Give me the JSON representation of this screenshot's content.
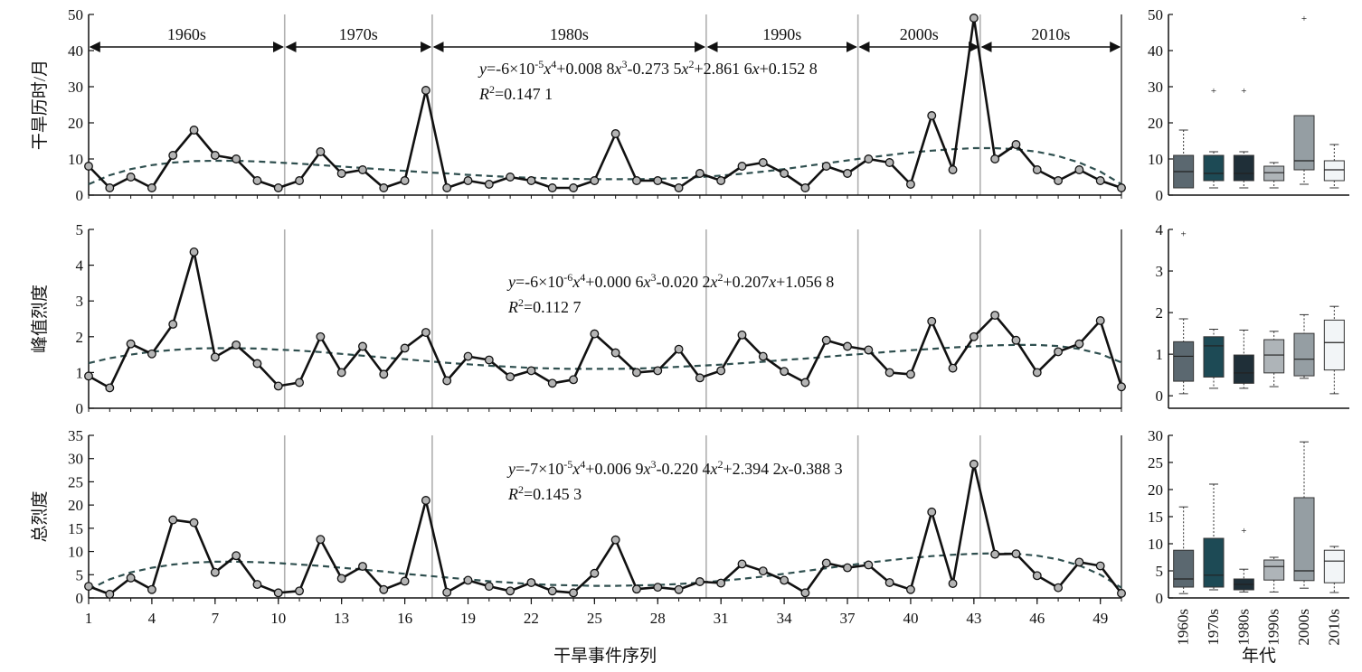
{
  "chart_data": {
    "type": "line",
    "xlabel": "干旱事件序列",
    "box_xlabel": "年代",
    "x_ticks": [
      1,
      4,
      7,
      10,
      13,
      16,
      19,
      22,
      25,
      28,
      31,
      34,
      37,
      40,
      43,
      46,
      49
    ],
    "decades": [
      {
        "label": "1960s",
        "start": 1,
        "end": 10
      },
      {
        "label": "1970s",
        "start": 10,
        "end": 17
      },
      {
        "label": "1980s",
        "start": 17,
        "end": 30
      },
      {
        "label": "1990s",
        "start": 30,
        "end": 37
      },
      {
        "label": "2000s",
        "start": 37,
        "end": 43
      },
      {
        "label": "2010s",
        "start": 43,
        "end": 50
      }
    ],
    "separators": [
      10.3,
      17.3,
      30.3,
      37.5,
      43.3
    ],
    "colors": {
      "line": "#111111",
      "marker_fill": "#b4b4b4",
      "trend": "#2f4f4f",
      "separator": "#b0b0b0",
      "box_1960s": "#5b6870",
      "box_1970s": "#1d4a55",
      "box_1980s": "#1f2f38",
      "box_1990s": "#aeb4b8",
      "box_2000s": "#959ea3",
      "box_2010s": "#f2f5f7"
    },
    "panels": [
      {
        "ylabel": "干旱历时/月",
        "ylim": [
          0,
          50
        ],
        "yticks": [
          0,
          10,
          20,
          30,
          40,
          50
        ],
        "equation_parts": [
          {
            "t": "y",
            "i": true
          },
          {
            "t": "=-6×10"
          },
          {
            "t": "-5",
            "s": true
          },
          {
            "t": "x",
            "i": true
          },
          {
            "t": "4",
            "s": true
          },
          {
            "t": "+0.008 8"
          },
          {
            "t": "x",
            "i": true
          },
          {
            "t": "3",
            "s": true
          },
          {
            "t": "-0.273 5"
          },
          {
            "t": "x",
            "i": true
          },
          {
            "t": "2",
            "s": true
          },
          {
            "t": "+2.861 6"
          },
          {
            "t": "x",
            "i": true
          },
          {
            "t": "+0.152 8"
          }
        ],
        "r2_parts": [
          {
            "t": "R",
            "i": true
          },
          {
            "t": "2",
            "s": true
          },
          {
            "t": "=0.147 1"
          }
        ],
        "values": [
          8,
          2,
          5,
          2,
          11,
          18,
          11,
          10,
          4,
          2,
          4,
          12,
          6,
          7,
          2,
          4,
          29,
          2,
          4,
          3,
          5,
          4,
          2,
          2,
          4,
          17,
          4,
          4,
          2,
          6,
          4,
          8,
          9,
          6,
          2,
          8,
          6,
          10,
          9,
          3,
          22,
          7,
          49,
          10,
          14,
          7,
          4,
          7,
          4,
          2
        ],
        "trend": [
          3.0,
          5.5,
          7.2,
          8.3,
          9.0,
          9.4,
          9.5,
          9.5,
          9.3,
          9.0,
          8.7,
          8.3,
          7.9,
          7.5,
          7.1,
          6.7,
          6.3,
          6.0,
          5.6,
          5.3,
          5.0,
          4.8,
          4.6,
          4.5,
          4.4,
          4.4,
          4.4,
          4.5,
          4.7,
          5.0,
          5.4,
          5.9,
          6.5,
          7.2,
          8.0,
          8.8,
          9.6,
          10.4,
          11.1,
          11.8,
          12.3,
          12.7,
          13.0,
          13.0,
          12.7,
          12.0,
          10.8,
          9.0,
          6.5,
          3.0
        ],
        "boxes": [
          {
            "label": "1960s",
            "whisker_low": 2,
            "q1": 2,
            "median": 6.5,
            "q3": 11,
            "whisker_high": 18,
            "outliers": []
          },
          {
            "label": "1970s",
            "whisker_low": 2,
            "q1": 4,
            "median": 6,
            "q3": 11,
            "whisker_high": 12,
            "outliers": [
              29
            ]
          },
          {
            "label": "1980s",
            "whisker_low": 2,
            "q1": 4,
            "median": 6,
            "q3": 11,
            "whisker_high": 12,
            "outliers": [
              29
            ]
          },
          {
            "label": "1990s",
            "whisker_low": 2,
            "q1": 4,
            "median": 6.2,
            "q3": 8,
            "whisker_high": 9,
            "outliers": []
          },
          {
            "label": "2000s",
            "whisker_low": 3,
            "q1": 7,
            "median": 9.5,
            "q3": 22,
            "whisker_high": 22,
            "outliers": [
              49
            ]
          },
          {
            "label": "2010s",
            "whisker_low": 2,
            "q1": 4,
            "median": 7,
            "q3": 9.5,
            "whisker_high": 14,
            "outliers": []
          }
        ],
        "box_ylim": [
          0,
          50
        ],
        "box_yticks": [
          0,
          10,
          20,
          30,
          40,
          50
        ]
      },
      {
        "ylabel": "峰值烈度",
        "ylim": [
          0,
          5
        ],
        "yticks": [
          0,
          1,
          2,
          3,
          4,
          5
        ],
        "equation_parts": [
          {
            "t": "y",
            "i": true
          },
          {
            "t": "=-6×10"
          },
          {
            "t": "-6",
            "s": true
          },
          {
            "t": "x",
            "i": true
          },
          {
            "t": "4",
            "s": true
          },
          {
            "t": "+0.000 6"
          },
          {
            "t": "x",
            "i": true
          },
          {
            "t": "3",
            "s": true
          },
          {
            "t": "-0.020 2"
          },
          {
            "t": "x",
            "i": true
          },
          {
            "t": "2",
            "s": true
          },
          {
            "t": "+0.207"
          },
          {
            "t": "x",
            "i": true
          },
          {
            "t": "+1.056 8"
          }
        ],
        "r2_parts": [
          {
            "t": "R",
            "i": true
          },
          {
            "t": "2",
            "s": true
          },
          {
            "t": "=0.112 7"
          }
        ],
        "values": [
          0.9,
          0.57,
          1.8,
          1.52,
          2.35,
          4.37,
          1.43,
          1.77,
          1.25,
          0.62,
          0.72,
          2.0,
          1.0,
          1.73,
          0.95,
          1.68,
          2.12,
          0.77,
          1.45,
          1.35,
          0.88,
          1.05,
          0.7,
          0.8,
          2.08,
          1.55,
          1.0,
          1.05,
          1.65,
          0.85,
          1.05,
          2.05,
          1.45,
          1.03,
          0.72,
          1.9,
          1.73,
          1.63,
          1.0,
          0.95,
          2.43,
          1.12,
          2.0,
          2.6,
          1.9,
          1.0,
          1.58,
          1.8,
          2.45,
          0.6
        ],
        "trend": [
          1.26,
          1.4,
          1.5,
          1.58,
          1.63,
          1.67,
          1.68,
          1.68,
          1.67,
          1.64,
          1.61,
          1.57,
          1.52,
          1.47,
          1.42,
          1.37,
          1.32,
          1.27,
          1.23,
          1.19,
          1.16,
          1.13,
          1.11,
          1.1,
          1.1,
          1.1,
          1.11,
          1.13,
          1.16,
          1.19,
          1.22,
          1.26,
          1.3,
          1.35,
          1.39,
          1.44,
          1.49,
          1.53,
          1.58,
          1.62,
          1.66,
          1.7,
          1.73,
          1.76,
          1.77,
          1.77,
          1.74,
          1.66,
          1.52,
          1.28
        ],
        "boxes": [
          {
            "label": "1960s",
            "whisker_low": 0.05,
            "q1": 0.35,
            "median": 0.95,
            "q3": 1.3,
            "whisker_high": 1.85,
            "outliers": [
              3.9
            ]
          },
          {
            "label": "1970s",
            "whisker_low": 0.18,
            "q1": 0.45,
            "median": 1.2,
            "q3": 1.42,
            "whisker_high": 1.6,
            "outliers": []
          },
          {
            "label": "1980s",
            "whisker_low": 0.18,
            "q1": 0.3,
            "median": 0.55,
            "q3": 0.98,
            "whisker_high": 1.58,
            "outliers": []
          },
          {
            "label": "1990s",
            "whisker_low": 0.22,
            "q1": 0.55,
            "median": 0.98,
            "q3": 1.35,
            "whisker_high": 1.55,
            "outliers": []
          },
          {
            "label": "2000s",
            "whisker_low": 0.42,
            "q1": 0.48,
            "median": 0.88,
            "q3": 1.5,
            "whisker_high": 1.95,
            "outliers": []
          },
          {
            "label": "2010s",
            "whisker_low": 0.05,
            "q1": 0.62,
            "median": 1.28,
            "q3": 1.82,
            "whisker_high": 2.15,
            "outliers": []
          }
        ],
        "box_ylim": [
          -0.3,
          4
        ],
        "box_yticks": [
          0,
          1,
          2,
          3,
          4
        ]
      },
      {
        "ylabel": "总烈度",
        "ylim": [
          0,
          35
        ],
        "yticks": [
          0,
          5,
          10,
          15,
          20,
          25,
          30,
          35
        ],
        "equation_parts": [
          {
            "t": "y",
            "i": true
          },
          {
            "t": "=-7×10"
          },
          {
            "t": "-5",
            "s": true
          },
          {
            "t": "x",
            "i": true
          },
          {
            "t": "4",
            "s": true
          },
          {
            "t": "+0.006 9"
          },
          {
            "t": "x",
            "i": true
          },
          {
            "t": "3",
            "s": true
          },
          {
            "t": "-0.220 4"
          },
          {
            "t": "x",
            "i": true
          },
          {
            "t": "2",
            "s": true
          },
          {
            "t": "+2.394 2"
          },
          {
            "t": "x",
            "i": true
          },
          {
            "t": "-0.388 3"
          }
        ],
        "r2_parts": [
          {
            "t": "R",
            "i": true
          },
          {
            "t": "2",
            "s": true
          },
          {
            "t": "=0.145 3"
          }
        ],
        "values": [
          2.5,
          0.8,
          4.3,
          1.8,
          16.8,
          16.2,
          5.5,
          9.1,
          2.9,
          1.1,
          1.5,
          12.6,
          4.2,
          6.8,
          1.8,
          3.6,
          21.0,
          1.2,
          3.8,
          2.5,
          1.5,
          3.3,
          1.5,
          1.1,
          5.3,
          12.5,
          1.9,
          2.3,
          1.8,
          3.5,
          3.2,
          7.3,
          5.8,
          3.8,
          1.1,
          7.5,
          6.5,
          7.1,
          3.3,
          1.8,
          18.5,
          3.1,
          28.8,
          9.4,
          9.5,
          4.8,
          2.2,
          7.7,
          6.9,
          1.0
        ],
        "trend": [
          1.8,
          4.0,
          5.5,
          6.5,
          7.2,
          7.6,
          7.8,
          7.8,
          7.7,
          7.5,
          7.2,
          6.9,
          6.5,
          6.1,
          5.7,
          5.2,
          4.8,
          4.4,
          4.0,
          3.6,
          3.3,
          3.0,
          2.8,
          2.7,
          2.6,
          2.6,
          2.7,
          2.8,
          3.0,
          3.3,
          3.7,
          4.1,
          4.6,
          5.2,
          5.8,
          6.4,
          7.0,
          7.6,
          8.1,
          8.6,
          9.0,
          9.3,
          9.5,
          9.6,
          9.5,
          9.1,
          8.3,
          7.0,
          5.0,
          2.2
        ],
        "boxes": [
          {
            "label": "1960s",
            "whisker_low": 0.8,
            "q1": 2.0,
            "median": 3.5,
            "q3": 8.8,
            "whisker_high": 16.8,
            "outliers": []
          },
          {
            "label": "1970s",
            "whisker_low": 1.5,
            "q1": 2.0,
            "median": 4.2,
            "q3": 11.0,
            "whisker_high": 21.0,
            "outliers": []
          },
          {
            "label": "1980s",
            "whisker_low": 1.1,
            "q1": 1.5,
            "median": 2.5,
            "q3": 3.5,
            "whisker_high": 5.3,
            "outliers": [
              12.5
            ]
          },
          {
            "label": "1990s",
            "whisker_low": 1.1,
            "q1": 3.3,
            "median": 5.8,
            "q3": 7.0,
            "whisker_high": 7.5,
            "outliers": []
          },
          {
            "label": "2000s",
            "whisker_low": 1.8,
            "q1": 3.2,
            "median": 5.0,
            "q3": 18.5,
            "whisker_high": 28.8,
            "outliers": []
          },
          {
            "label": "2010s",
            "whisker_low": 1.0,
            "q1": 2.8,
            "median": 6.8,
            "q3": 8.8,
            "whisker_high": 9.5,
            "outliers": []
          }
        ],
        "box_ylim": [
          0,
          30
        ],
        "box_yticks": [
          0,
          5,
          10,
          15,
          20,
          25,
          30
        ]
      }
    ]
  }
}
